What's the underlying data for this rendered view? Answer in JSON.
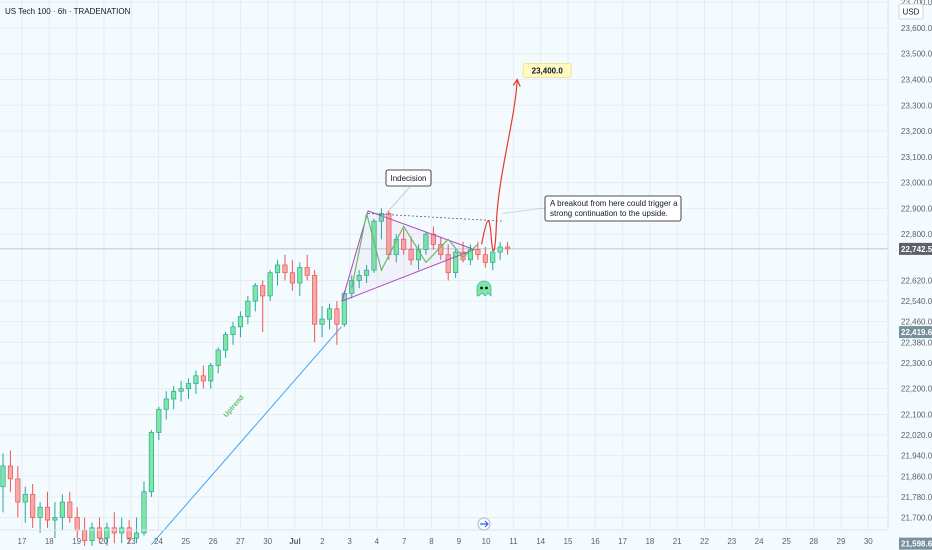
{
  "header": {
    "symbol_title": "US Tech 100 · 6h · TRADENATION"
  },
  "currency_button": {
    "label": "USD"
  },
  "chart_data": {
    "type": "candlestick",
    "title": "US Tech 100 · 6h · TRADENATION",
    "currency": "USD",
    "price_axis_ticks": [
      23700,
      23600,
      23500,
      23400,
      23300,
      23200,
      23100,
      23000,
      22900,
      22800,
      22620,
      22540,
      22460,
      22380,
      22300,
      22200,
      22100,
      22020,
      21940,
      21860,
      21780,
      21700
    ],
    "price_axis_labels": [
      "23,700.0",
      "23,600.0",
      "23,500.0",
      "23,400.0",
      "23,300.0",
      "23,200.0",
      "23,100.0",
      "23,000.0",
      "22,900.0",
      "22,800.0",
      "22,620.0",
      "22,540.0",
      "22,460.0",
      "22,380.0",
      "22,300.0",
      "22,200.0",
      "22,100.0",
      "22,020.0",
      "21,940.0",
      "21,860.0",
      "21,780.0",
      "21,700.0"
    ],
    "ylim": [
      21570,
      23790
    ],
    "time_axis_labels": [
      "17",
      "18",
      "19",
      "20",
      "23",
      "24",
      "25",
      "26",
      "27",
      "30",
      "Jul",
      "2",
      "3",
      "4",
      "7",
      "8",
      "9",
      "10",
      "11",
      "14",
      "15",
      "16",
      "17",
      "18",
      "21",
      "22",
      "23",
      "24",
      "25",
      "28",
      "29",
      "30"
    ],
    "price_badges": [
      {
        "label": "22,742.5",
        "value": 22742.5,
        "color": "#5d606b"
      },
      {
        "label": "22,419.6",
        "value": 22419.6,
        "color": "#78909c"
      },
      {
        "label": "21,598.6",
        "value": 21598.6,
        "color": "#78909c"
      }
    ],
    "current_price": 22742.5,
    "colors": {
      "up": "#26a69a",
      "down": "#ef5350",
      "up_fill": "#7ee8a2",
      "pattern": "#ab47bc",
      "projection": "#e53935",
      "uptrend": "#42a5f5"
    },
    "candles": [
      {
        "o": 21820,
        "h": 21950,
        "l": 21720,
        "c": 21900
      },
      {
        "o": 21900,
        "h": 21960,
        "l": 21800,
        "c": 21850
      },
      {
        "o": 21850,
        "h": 21900,
        "l": 21700,
        "c": 21760
      },
      {
        "o": 21760,
        "h": 21820,
        "l": 21680,
        "c": 21790
      },
      {
        "o": 21790,
        "h": 21830,
        "l": 21660,
        "c": 21700
      },
      {
        "o": 21700,
        "h": 21760,
        "l": 21640,
        "c": 21740
      },
      {
        "o": 21740,
        "h": 21800,
        "l": 21660,
        "c": 21690
      },
      {
        "o": 21690,
        "h": 21760,
        "l": 21620,
        "c": 21700
      },
      {
        "o": 21700,
        "h": 21790,
        "l": 21650,
        "c": 21760
      },
      {
        "o": 21760,
        "h": 21800,
        "l": 21680,
        "c": 21700
      },
      {
        "o": 21700,
        "h": 21740,
        "l": 21620,
        "c": 21650
      },
      {
        "o": 21650,
        "h": 21700,
        "l": 21590,
        "c": 21610
      },
      {
        "o": 21610,
        "h": 21680,
        "l": 21590,
        "c": 21660
      },
      {
        "o": 21660,
        "h": 21700,
        "l": 21600,
        "c": 21620
      },
      {
        "o": 21620,
        "h": 21680,
        "l": 21590,
        "c": 21660
      },
      {
        "o": 21660,
        "h": 21720,
        "l": 21600,
        "c": 21640
      },
      {
        "o": 21640,
        "h": 21700,
        "l": 21600,
        "c": 21660
      },
      {
        "o": 21660,
        "h": 21690,
        "l": 21600,
        "c": 21620
      },
      {
        "o": 21620,
        "h": 21700,
        "l": 21600,
        "c": 21640
      },
      {
        "o": 21640,
        "h": 21840,
        "l": 21630,
        "c": 21800
      },
      {
        "o": 21800,
        "h": 22040,
        "l": 21780,
        "c": 22030
      },
      {
        "o": 22030,
        "h": 22130,
        "l": 22000,
        "c": 22120
      },
      {
        "o": 22120,
        "h": 22190,
        "l": 22080,
        "c": 22160
      },
      {
        "o": 22160,
        "h": 22210,
        "l": 22120,
        "c": 22190
      },
      {
        "o": 22190,
        "h": 22230,
        "l": 22150,
        "c": 22200
      },
      {
        "o": 22200,
        "h": 22240,
        "l": 22160,
        "c": 22220
      },
      {
        "o": 22220,
        "h": 22270,
        "l": 22180,
        "c": 22250
      },
      {
        "o": 22250,
        "h": 22290,
        "l": 22200,
        "c": 22230
      },
      {
        "o": 22230,
        "h": 22300,
        "l": 22200,
        "c": 22290
      },
      {
        "o": 22290,
        "h": 22360,
        "l": 22260,
        "c": 22350
      },
      {
        "o": 22350,
        "h": 22420,
        "l": 22320,
        "c": 22410
      },
      {
        "o": 22410,
        "h": 22460,
        "l": 22370,
        "c": 22440
      },
      {
        "o": 22440,
        "h": 22500,
        "l": 22400,
        "c": 22480
      },
      {
        "o": 22480,
        "h": 22560,
        "l": 22450,
        "c": 22540
      },
      {
        "o": 22540,
        "h": 22610,
        "l": 22500,
        "c": 22600
      },
      {
        "o": 22600,
        "h": 22620,
        "l": 22420,
        "c": 22560
      },
      {
        "o": 22560,
        "h": 22660,
        "l": 22540,
        "c": 22650
      },
      {
        "o": 22650,
        "h": 22700,
        "l": 22600,
        "c": 22680
      },
      {
        "o": 22680,
        "h": 22720,
        "l": 22620,
        "c": 22650
      },
      {
        "o": 22650,
        "h": 22700,
        "l": 22580,
        "c": 22610
      },
      {
        "o": 22610,
        "h": 22690,
        "l": 22560,
        "c": 22670
      },
      {
        "o": 22670,
        "h": 22720,
        "l": 22620,
        "c": 22640
      },
      {
        "o": 22640,
        "h": 22660,
        "l": 22380,
        "c": 22450
      },
      {
        "o": 22450,
        "h": 22520,
        "l": 22400,
        "c": 22470
      },
      {
        "o": 22470,
        "h": 22530,
        "l": 22430,
        "c": 22510
      },
      {
        "o": 22510,
        "h": 22540,
        "l": 22370,
        "c": 22450
      },
      {
        "o": 22450,
        "h": 22580,
        "l": 22440,
        "c": 22570
      },
      {
        "o": 22570,
        "h": 22640,
        "l": 22550,
        "c": 22620
      },
      {
        "o": 22620,
        "h": 22660,
        "l": 22590,
        "c": 22640
      },
      {
        "o": 22640,
        "h": 22680,
        "l": 22610,
        "c": 22660
      },
      {
        "o": 22660,
        "h": 22860,
        "l": 22650,
        "c": 22850
      },
      {
        "o": 22850,
        "h": 22900,
        "l": 22780,
        "c": 22880
      },
      {
        "o": 22880,
        "h": 22890,
        "l": 22700,
        "c": 22720
      },
      {
        "o": 22720,
        "h": 22800,
        "l": 22690,
        "c": 22780
      },
      {
        "o": 22780,
        "h": 22820,
        "l": 22720,
        "c": 22740
      },
      {
        "o": 22740,
        "h": 22790,
        "l": 22680,
        "c": 22700
      },
      {
        "o": 22700,
        "h": 22760,
        "l": 22660,
        "c": 22740
      },
      {
        "o": 22740,
        "h": 22810,
        "l": 22720,
        "c": 22800
      },
      {
        "o": 22800,
        "h": 22830,
        "l": 22740,
        "c": 22760
      },
      {
        "o": 22760,
        "h": 22790,
        "l": 22700,
        "c": 22720
      },
      {
        "o": 22720,
        "h": 22760,
        "l": 22620,
        "c": 22650
      },
      {
        "o": 22650,
        "h": 22740,
        "l": 22630,
        "c": 22730
      },
      {
        "o": 22730,
        "h": 22770,
        "l": 22690,
        "c": 22700
      },
      {
        "o": 22700,
        "h": 22760,
        "l": 22680,
        "c": 22740
      },
      {
        "o": 22740,
        "h": 22770,
        "l": 22700,
        "c": 22720
      },
      {
        "o": 22720,
        "h": 22750,
        "l": 22670,
        "c": 22690
      },
      {
        "o": 22690,
        "h": 22740,
        "l": 22660,
        "c": 22730
      },
      {
        "o": 22730,
        "h": 22770,
        "l": 22700,
        "c": 22750
      },
      {
        "o": 22750,
        "h": 22770,
        "l": 22720,
        "c": 22742.5
      }
    ],
    "annotations": {
      "indecision_label": "Indecision",
      "target_label": "23,400.0",
      "target_price": 23400,
      "breakout_text_line1": "A breakout from here could trigger a",
      "breakout_text_line2": "strong continuation to the upside.",
      "uptrend_label": "Uptrend",
      "resistance_price": 22880
    }
  }
}
